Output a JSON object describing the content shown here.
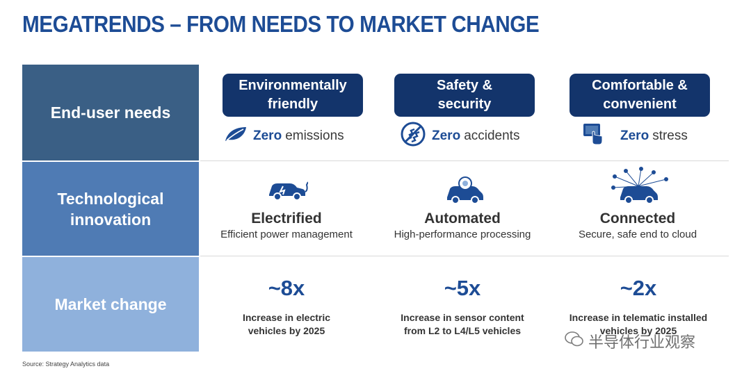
{
  "title": "MEGATRENDS – FROM NEEDS TO MARKET CHANGE",
  "rows": {
    "needs": "End-user needs",
    "tech": "Technological innovation",
    "market": "Market change"
  },
  "needs": [
    {
      "label": "Environmentally\nfriendly",
      "zero": "Zero",
      "zero_rest": "emissions",
      "icon": "leaf-icon"
    },
    {
      "label": "Safety &\nsecurity",
      "zero": "Zero",
      "zero_rest": "accidents",
      "icon": "road-safety-icon"
    },
    {
      "label": "Comfortable  &\nconvenient",
      "zero": "Zero",
      "zero_rest": "stress",
      "icon": "touchscreen-icon"
    }
  ],
  "tech": [
    {
      "title": "Electrified",
      "sub": "Efficient power management",
      "icon": "electric-car-icon"
    },
    {
      "title": "Automated",
      "sub": "High-performance processing",
      "icon": "autonomous-car-icon"
    },
    {
      "title": "Connected",
      "sub": "Secure, safe end to cloud",
      "icon": "connected-car-icon"
    }
  ],
  "market": [
    {
      "value": "~8x",
      "desc": "Increase in electric\nvehicles by 2025"
    },
    {
      "value": "~5x",
      "desc": "Increase in sensor content\nfrom L2 to L4/L5 vehicles"
    },
    {
      "value": "~2x",
      "desc": "Increase in telematic installed\nvehicles by 2025"
    }
  ],
  "source": "Source: Strategy Analytics data",
  "watermark": "半导体行业观察",
  "colors": {
    "brand": "#1d4c95",
    "pill": "#13346b",
    "row1": "#3a5f85",
    "row2": "#4f7bb4",
    "row3": "#8fb1dc"
  }
}
